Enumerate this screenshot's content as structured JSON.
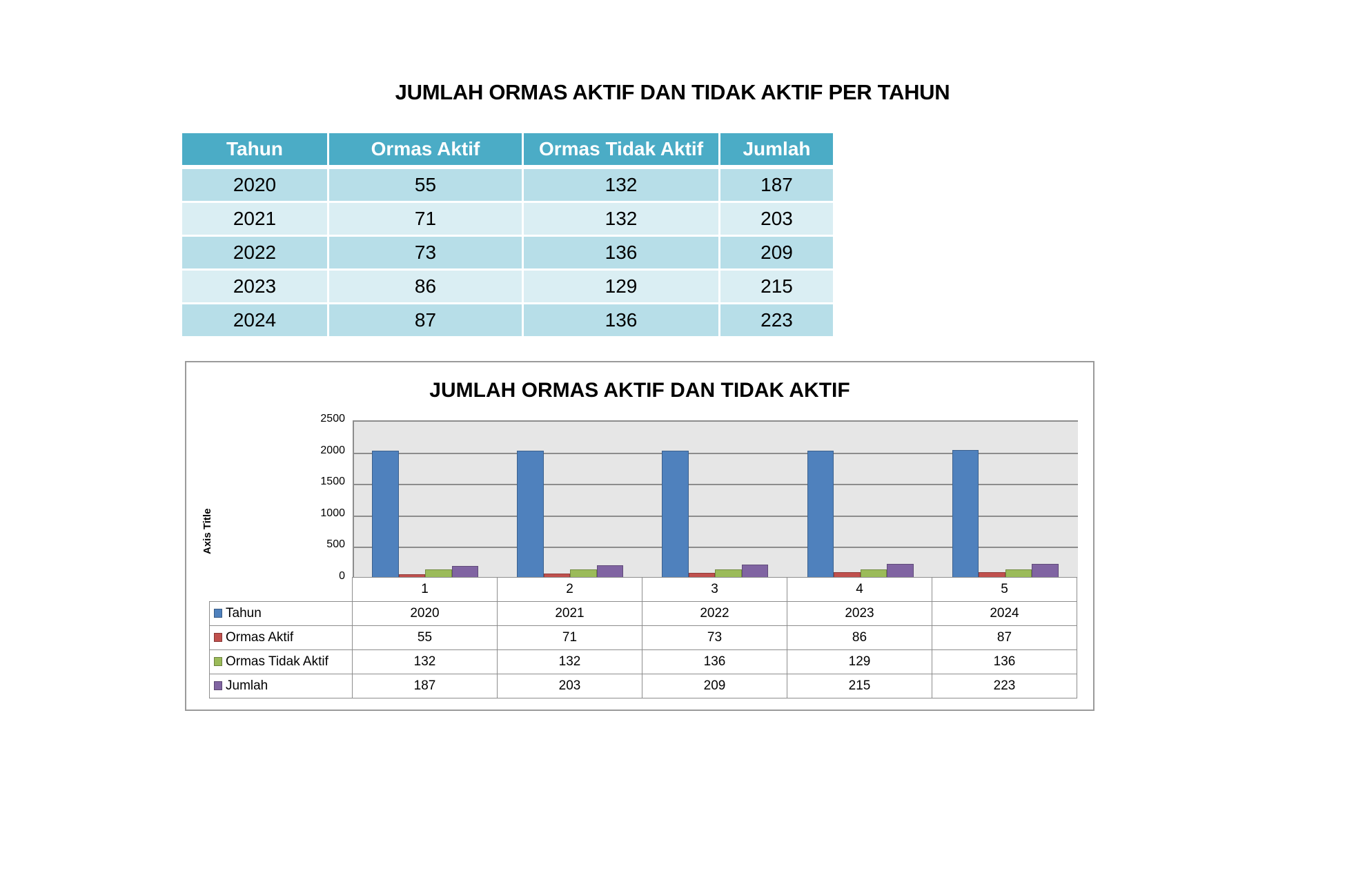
{
  "page": {
    "title": "JUMLAH ORMAS AKTIF DAN TIDAK AKTIF PER TAHUN"
  },
  "table": {
    "headers": [
      "Tahun",
      "Ormas Aktif",
      "Ormas Tidak Aktif",
      "Jumlah"
    ],
    "rows": [
      [
        "2020",
        "55",
        "132",
        "187"
      ],
      [
        "2021",
        "71",
        "132",
        "203"
      ],
      [
        "2022",
        "73",
        "136",
        "209"
      ],
      [
        "2023",
        "86",
        "129",
        "215"
      ],
      [
        "2024",
        "87",
        "136",
        "223"
      ]
    ],
    "colors": {
      "header": "#4BACC6",
      "row_odd": "#B7DEE8",
      "row_even": "#DAEEF3"
    }
  },
  "chart_data": {
    "type": "bar",
    "title": "JUMLAH ORMAS AKTIF DAN TIDAK AKTIF",
    "xlabel": "",
    "ylabel": "Axis Title",
    "categories": [
      "1",
      "2",
      "3",
      "4",
      "5"
    ],
    "ylim": [
      0,
      2500
    ],
    "yticks": [
      "2500",
      "2000",
      "1500",
      "1000",
      "500",
      "0"
    ],
    "grid": true,
    "legend_position": "data-table",
    "series": [
      {
        "name": "Tahun",
        "color": "#4F81BD",
        "values": [
          2020,
          2021,
          2022,
          2023,
          2024
        ]
      },
      {
        "name": "Ormas Aktif",
        "color": "#C0504D",
        "values": [
          55,
          71,
          73,
          86,
          87
        ]
      },
      {
        "name": "Ormas Tidak Aktif",
        "color": "#9BBB59",
        "values": [
          132,
          132,
          136,
          129,
          136
        ]
      },
      {
        "name": "Jumlah",
        "color": "#8064A2",
        "values": [
          187,
          203,
          209,
          215,
          223
        ]
      }
    ]
  }
}
